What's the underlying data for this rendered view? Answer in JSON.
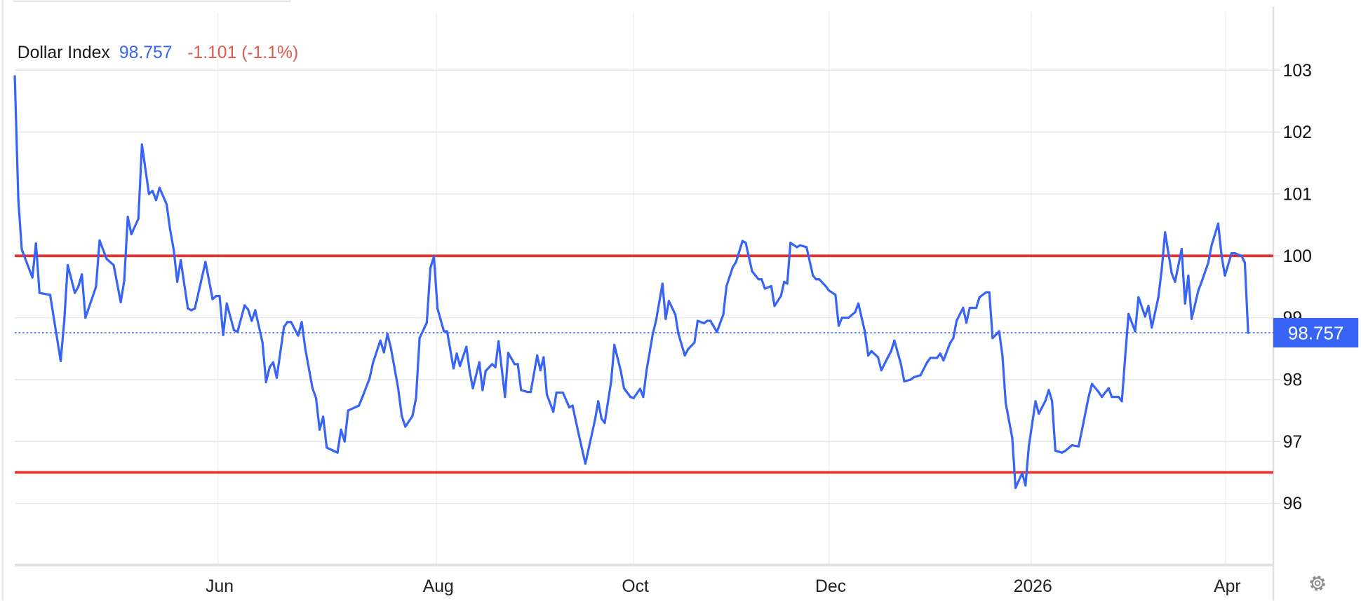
{
  "header": {
    "name": "Dollar Index",
    "price": "98.757",
    "change": "-1.101 (-1.1%)"
  },
  "colors": {
    "series": "#3764f5",
    "reference_line": "#e8312a",
    "change_negative": "#e05a4f",
    "price_label_bg": "#3764f5",
    "grid": "#e6e6e6"
  },
  "settings_icon": "gear-icon",
  "chart_data": {
    "type": "line",
    "title": "Dollar Index",
    "xlabel": "",
    "ylabel": "",
    "ylim": [
      95,
      103.3
    ],
    "y_axis_position": "right",
    "grid": true,
    "y_ticks": [
      96,
      97,
      98,
      99,
      100,
      101,
      102,
      103
    ],
    "x_tick_labels": [
      "Jun",
      "Aug",
      "Oct",
      "Dec",
      "2026",
      "Apr"
    ],
    "last_value": 98.757,
    "last_value_label": "98.757",
    "reference_lines": [
      100.0,
      96.5
    ],
    "series": [
      {
        "points": [
          [
            "2025-04-04",
            102.9
          ],
          [
            "2025-04-05",
            100.9
          ],
          [
            "2025-04-06",
            100.1
          ],
          [
            "2025-04-09",
            99.65
          ],
          [
            "2025-04-10",
            100.2
          ],
          [
            "2025-04-11",
            99.4
          ],
          [
            "2025-04-14",
            99.37
          ],
          [
            "2025-04-17",
            98.3
          ],
          [
            "2025-04-18",
            98.95
          ],
          [
            "2025-04-19",
            99.85
          ],
          [
            "2025-04-21",
            99.4
          ],
          [
            "2025-04-22",
            99.5
          ],
          [
            "2025-04-23",
            99.7
          ],
          [
            "2025-04-24",
            99.0
          ],
          [
            "2025-04-27",
            99.5
          ],
          [
            "2025-04-28",
            100.25
          ],
          [
            "2025-04-30",
            99.95
          ],
          [
            "2025-05-02",
            99.85
          ],
          [
            "2025-05-04",
            99.25
          ],
          [
            "2025-05-05",
            99.6
          ],
          [
            "2025-05-06",
            100.63
          ],
          [
            "2025-05-07",
            100.35
          ],
          [
            "2025-05-09",
            100.6
          ],
          [
            "2025-05-10",
            101.8
          ],
          [
            "2025-05-12",
            101.0
          ],
          [
            "2025-05-13",
            101.05
          ],
          [
            "2025-05-14",
            100.9
          ],
          [
            "2025-05-15",
            101.1
          ],
          [
            "2025-05-17",
            100.83
          ],
          [
            "2025-05-18",
            100.42
          ],
          [
            "2025-05-19",
            100.1
          ],
          [
            "2025-05-20",
            99.58
          ],
          [
            "2025-05-21",
            99.93
          ],
          [
            "2025-05-23",
            99.15
          ],
          [
            "2025-05-24",
            99.12
          ],
          [
            "2025-05-25",
            99.15
          ],
          [
            "2025-05-28",
            99.9
          ],
          [
            "2025-05-30",
            99.3
          ],
          [
            "2025-05-31",
            99.35
          ],
          [
            "2025-06-01",
            99.35
          ],
          [
            "2025-06-02",
            98.72
          ],
          [
            "2025-06-03",
            99.23
          ],
          [
            "2025-06-05",
            98.8
          ],
          [
            "2025-06-06",
            98.77
          ],
          [
            "2025-06-08",
            99.2
          ],
          [
            "2025-06-09",
            99.13
          ],
          [
            "2025-06-10",
            98.95
          ],
          [
            "2025-06-11",
            99.12
          ],
          [
            "2025-06-13",
            98.6
          ],
          [
            "2025-06-14",
            97.96
          ],
          [
            "2025-06-15",
            98.2
          ],
          [
            "2025-06-16",
            98.28
          ],
          [
            "2025-06-17",
            98.03
          ],
          [
            "2025-06-19",
            98.85
          ],
          [
            "2025-06-20",
            98.93
          ],
          [
            "2025-06-21",
            98.93
          ],
          [
            "2025-06-23",
            98.71
          ],
          [
            "2025-06-24",
            98.93
          ],
          [
            "2025-06-25",
            98.49
          ],
          [
            "2025-06-27",
            97.86
          ],
          [
            "2025-06-28",
            97.7
          ],
          [
            "2025-06-29",
            97.19
          ],
          [
            "2025-06-30",
            97.4
          ],
          [
            "2025-07-01",
            96.9
          ],
          [
            "2025-07-04",
            96.82
          ],
          [
            "2025-07-05",
            97.19
          ],
          [
            "2025-07-06",
            97.0
          ],
          [
            "2025-07-07",
            97.5
          ],
          [
            "2025-07-10",
            97.58
          ],
          [
            "2025-07-11",
            97.72
          ],
          [
            "2025-07-13",
            98.02
          ],
          [
            "2025-07-14",
            98.28
          ],
          [
            "2025-07-16",
            98.63
          ],
          [
            "2025-07-17",
            98.44
          ],
          [
            "2025-07-18",
            98.74
          ],
          [
            "2025-07-19",
            98.5
          ],
          [
            "2025-07-21",
            97.86
          ],
          [
            "2025-07-22",
            97.41
          ],
          [
            "2025-07-23",
            97.24
          ],
          [
            "2025-07-25",
            97.41
          ],
          [
            "2025-07-26",
            97.7
          ],
          [
            "2025-07-27",
            98.67
          ],
          [
            "2025-07-29",
            98.92
          ],
          [
            "2025-07-30",
            99.8
          ],
          [
            "2025-07-31",
            99.99
          ],
          [
            "2025-08-01",
            99.15
          ],
          [
            "2025-08-03",
            98.78
          ],
          [
            "2025-08-04",
            98.78
          ],
          [
            "2025-08-06",
            98.18
          ],
          [
            "2025-08-07",
            98.42
          ],
          [
            "2025-08-08",
            98.22
          ],
          [
            "2025-08-10",
            98.53
          ],
          [
            "2025-08-11",
            98.14
          ],
          [
            "2025-08-12",
            97.86
          ],
          [
            "2025-08-14",
            98.28
          ],
          [
            "2025-08-15",
            97.83
          ],
          [
            "2025-08-16",
            98.14
          ],
          [
            "2025-08-18",
            98.25
          ],
          [
            "2025-08-19",
            98.2
          ],
          [
            "2025-08-20",
            98.62
          ],
          [
            "2025-08-22",
            97.72
          ],
          [
            "2025-08-23",
            98.43
          ],
          [
            "2025-08-25",
            98.25
          ],
          [
            "2025-08-26",
            98.25
          ],
          [
            "2025-08-27",
            97.83
          ],
          [
            "2025-08-29",
            97.8
          ],
          [
            "2025-08-30",
            97.8
          ],
          [
            "2025-09-01",
            98.39
          ],
          [
            "2025-09-02",
            98.15
          ],
          [
            "2025-09-03",
            98.36
          ],
          [
            "2025-09-04",
            97.76
          ],
          [
            "2025-09-06",
            97.48
          ],
          [
            "2025-09-07",
            97.79
          ],
          [
            "2025-09-09",
            97.79
          ],
          [
            "2025-09-11",
            97.55
          ],
          [
            "2025-09-12",
            97.58
          ],
          [
            "2025-09-14",
            97.1
          ],
          [
            "2025-09-16",
            96.64
          ],
          [
            "2025-09-17",
            96.88
          ],
          [
            "2025-09-19",
            97.35
          ],
          [
            "2025-09-20",
            97.65
          ],
          [
            "2025-09-21",
            97.37
          ],
          [
            "2025-09-22",
            97.3
          ],
          [
            "2025-09-24",
            97.97
          ],
          [
            "2025-09-25",
            98.56
          ],
          [
            "2025-09-27",
            98.14
          ],
          [
            "2025-09-28",
            97.86
          ],
          [
            "2025-09-30",
            97.72
          ],
          [
            "2025-10-01",
            97.7
          ],
          [
            "2025-10-03",
            97.85
          ],
          [
            "2025-10-04",
            97.72
          ],
          [
            "2025-10-05",
            98.14
          ],
          [
            "2025-10-07",
            98.74
          ],
          [
            "2025-10-08",
            98.95
          ],
          [
            "2025-10-10",
            99.55
          ],
          [
            "2025-10-11",
            98.98
          ],
          [
            "2025-10-12",
            99.27
          ],
          [
            "2025-10-14",
            99.05
          ],
          [
            "2025-10-15",
            98.74
          ],
          [
            "2025-10-17",
            98.39
          ],
          [
            "2025-10-18",
            98.49
          ],
          [
            "2025-10-20",
            98.6
          ],
          [
            "2025-10-21",
            98.95
          ],
          [
            "2025-10-23",
            98.91
          ],
          [
            "2025-10-24",
            98.95
          ],
          [
            "2025-10-25",
            98.95
          ],
          [
            "2025-10-27",
            98.77
          ],
          [
            "2025-10-29",
            99.05
          ],
          [
            "2025-10-30",
            99.51
          ],
          [
            "2025-11-01",
            99.82
          ],
          [
            "2025-11-02",
            99.9
          ],
          [
            "2025-11-04",
            100.24
          ],
          [
            "2025-11-05",
            100.21
          ],
          [
            "2025-11-07",
            99.75
          ],
          [
            "2025-11-09",
            99.62
          ],
          [
            "2025-11-10",
            99.62
          ],
          [
            "2025-11-11",
            99.47
          ],
          [
            "2025-11-13",
            99.51
          ],
          [
            "2025-11-14",
            99.19
          ],
          [
            "2025-11-16",
            99.35
          ],
          [
            "2025-11-17",
            99.58
          ],
          [
            "2025-11-18",
            99.55
          ],
          [
            "2025-11-19",
            100.21
          ],
          [
            "2025-11-21",
            100.14
          ],
          [
            "2025-11-22",
            100.17
          ],
          [
            "2025-11-24",
            100.14
          ],
          [
            "2025-11-26",
            99.68
          ],
          [
            "2025-11-27",
            99.62
          ],
          [
            "2025-11-28",
            99.62
          ],
          [
            "2025-11-30",
            99.51
          ],
          [
            "2025-12-01",
            99.44
          ],
          [
            "2025-12-03",
            99.37
          ],
          [
            "2025-12-04",
            98.87
          ],
          [
            "2025-12-05",
            99.0
          ],
          [
            "2025-12-07",
            99.0
          ],
          [
            "2025-12-09",
            99.09
          ],
          [
            "2025-12-10",
            99.23
          ],
          [
            "2025-12-12",
            98.77
          ],
          [
            "2025-12-13",
            98.39
          ],
          [
            "2025-12-14",
            98.46
          ],
          [
            "2025-12-16",
            98.36
          ],
          [
            "2025-12-17",
            98.15
          ],
          [
            "2025-12-19",
            98.36
          ],
          [
            "2025-12-20",
            98.46
          ],
          [
            "2025-12-21",
            98.63
          ],
          [
            "2025-12-23",
            98.25
          ],
          [
            "2025-12-24",
            97.97
          ],
          [
            "2025-12-26",
            98.0
          ],
          [
            "2025-12-27",
            98.04
          ],
          [
            "2025-12-29",
            98.07
          ],
          [
            "2025-12-31",
            98.28
          ],
          [
            "2026-01-01",
            98.35
          ],
          [
            "2026-01-03",
            98.35
          ],
          [
            "2026-01-04",
            98.42
          ],
          [
            "2026-01-05",
            98.31
          ],
          [
            "2026-01-07",
            98.59
          ],
          [
            "2026-01-08",
            98.67
          ],
          [
            "2026-01-09",
            98.95
          ],
          [
            "2026-01-11",
            99.16
          ],
          [
            "2026-01-12",
            98.92
          ],
          [
            "2026-01-13",
            99.16
          ],
          [
            "2026-01-15",
            99.16
          ],
          [
            "2026-01-16",
            99.33
          ],
          [
            "2026-01-18",
            99.41
          ],
          [
            "2026-01-19",
            99.41
          ],
          [
            "2026-01-20",
            98.67
          ],
          [
            "2026-01-22",
            98.78
          ],
          [
            "2026-01-23",
            98.39
          ],
          [
            "2026-01-24",
            97.62
          ],
          [
            "2026-01-26",
            97.06
          ],
          [
            "2026-01-27",
            96.25
          ],
          [
            "2026-01-29",
            96.49
          ],
          [
            "2026-01-30",
            96.29
          ],
          [
            "2026-01-31",
            96.92
          ],
          [
            "2026-02-02",
            97.65
          ],
          [
            "2026-02-03",
            97.45
          ],
          [
            "2026-02-05",
            97.66
          ],
          [
            "2026-02-06",
            97.83
          ],
          [
            "2026-02-07",
            97.65
          ],
          [
            "2026-02-08",
            96.85
          ],
          [
            "2026-02-10",
            96.82
          ],
          [
            "2026-02-11",
            96.85
          ],
          [
            "2026-02-13",
            96.94
          ],
          [
            "2026-02-15",
            96.92
          ],
          [
            "2026-02-16",
            97.19
          ],
          [
            "2026-02-18",
            97.72
          ],
          [
            "2026-02-19",
            97.93
          ],
          [
            "2026-02-21",
            97.8
          ],
          [
            "2026-02-22",
            97.72
          ],
          [
            "2026-02-24",
            97.86
          ],
          [
            "2026-02-25",
            97.72
          ],
          [
            "2026-02-27",
            97.72
          ],
          [
            "2026-02-28",
            97.65
          ],
          [
            "2026-03-01",
            98.36
          ],
          [
            "2026-03-02",
            99.06
          ],
          [
            "2026-03-04",
            98.78
          ],
          [
            "2026-03-05",
            99.33
          ],
          [
            "2026-03-07",
            99.02
          ],
          [
            "2026-03-08",
            99.19
          ],
          [
            "2026-03-09",
            98.84
          ],
          [
            "2026-03-11",
            99.33
          ],
          [
            "2026-03-12",
            99.79
          ],
          [
            "2026-03-13",
            100.38
          ],
          [
            "2026-03-15",
            99.72
          ],
          [
            "2026-03-16",
            99.58
          ],
          [
            "2026-03-18",
            100.11
          ],
          [
            "2026-03-19",
            99.23
          ],
          [
            "2026-03-20",
            99.68
          ],
          [
            "2026-03-21",
            98.98
          ],
          [
            "2026-03-23",
            99.44
          ],
          [
            "2026-03-24",
            99.58
          ],
          [
            "2026-03-26",
            99.89
          ],
          [
            "2026-03-27",
            100.17
          ],
          [
            "2026-03-29",
            100.52
          ],
          [
            "2026-03-30",
            100.0
          ],
          [
            "2026-03-31",
            99.68
          ],
          [
            "2026-04-02",
            100.04
          ],
          [
            "2026-04-03",
            100.04
          ],
          [
            "2026-04-05",
            100.0
          ],
          [
            "2026-04-06",
            99.89
          ],
          [
            "2026-04-07",
            98.757
          ]
        ]
      }
    ]
  }
}
